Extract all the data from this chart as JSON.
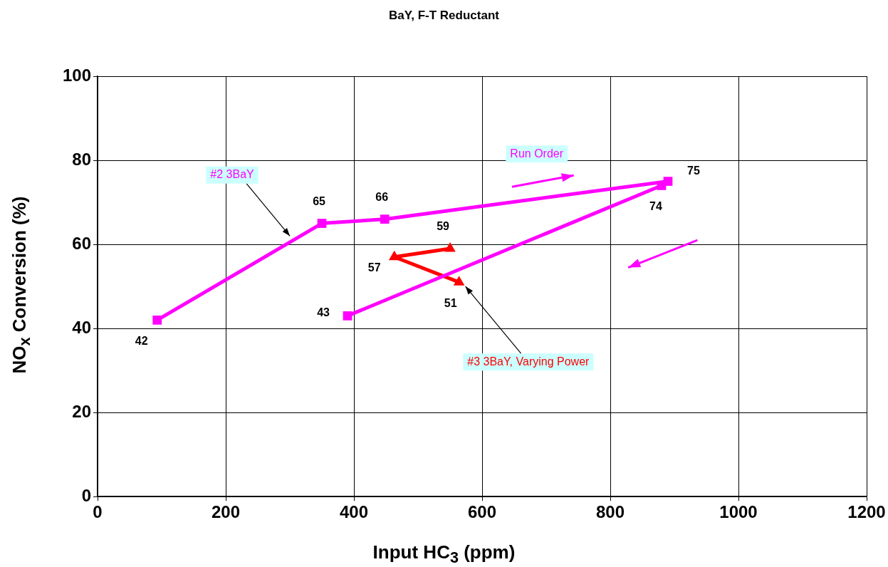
{
  "chart_data": {
    "type": "line",
    "title": "BaY, F-T Reductant",
    "xlabel": "Input HC$_{3}$ (ppm)",
    "ylabel": "NO$_{x}$ Conversion (%)",
    "xlim": [
      0,
      1200
    ],
    "xticks": [
      0,
      200,
      400,
      600,
      800,
      1000,
      1200
    ],
    "ylim": [
      0,
      100
    ],
    "yticks": [
      0,
      20,
      40,
      60,
      80,
      100
    ],
    "grid": true,
    "legend": false,
    "data_labels": true,
    "line_style": "solid",
    "series": [
      {
        "x": [
          93,
          350,
          448,
          890,
          880,
          390
        ],
        "values": [
          42,
          65,
          66,
          75,
          74,
          43
        ],
        "color": "#ff00ff",
        "marker": "square"
      },
      {
        "x": [
          550,
          463,
          564
        ],
        "values": [
          59,
          57,
          51
        ],
        "color": "#ff0000",
        "marker": "triangle"
      }
    ],
    "annotations": [
      "#2 3BaY",
      {
        "text": "#3 3BaY, Varying Power",
        "x": 574,
        "y": 50
      },
      "Run Order"
    ]
  }
}
